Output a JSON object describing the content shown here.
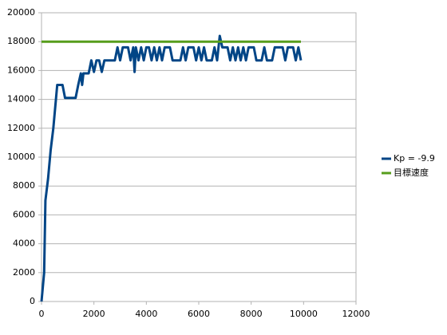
{
  "chart_data": {
    "type": "line",
    "series": [
      {
        "name": "Kp = -9.9",
        "color": "#004586",
        "x": [
          0,
          100,
          150,
          250,
          350,
          450,
          600,
          800,
          900,
          1300,
          1400,
          1500,
          1550,
          1600,
          1800,
          1900,
          2000,
          2100,
          2200,
          2300,
          2400,
          2800,
          2900,
          3000,
          3100,
          3300,
          3400,
          3500,
          3550,
          3600,
          3700,
          3800,
          3900,
          4000,
          4100,
          4200,
          4300,
          4400,
          4500,
          4600,
          4700,
          4900,
          5000,
          5300,
          5400,
          5500,
          5600,
          5800,
          5900,
          6000,
          6100,
          6200,
          6300,
          6500,
          6600,
          6700,
          6800,
          6900,
          7100,
          7200,
          7300,
          7400,
          7500,
          7600,
          7700,
          7800,
          7900,
          8100,
          8200,
          8400,
          8500,
          8600,
          8800,
          8900,
          9200,
          9300,
          9400,
          9600,
          9700,
          9800,
          9900
        ],
        "values": [
          0,
          2000,
          7000,
          8500,
          10500,
          12000,
          15000,
          15000,
          14100,
          14100,
          15000,
          15800,
          15000,
          15800,
          15800,
          16700,
          15900,
          16700,
          16700,
          15900,
          16700,
          16700,
          17600,
          16700,
          17600,
          17600,
          16700,
          17600,
          15900,
          17600,
          16700,
          17600,
          16700,
          17600,
          17600,
          16700,
          17600,
          16700,
          17600,
          16700,
          17600,
          17600,
          16700,
          16700,
          17600,
          16700,
          17600,
          17600,
          16700,
          17600,
          16700,
          17600,
          16700,
          16700,
          17600,
          16700,
          18400,
          17600,
          17600,
          16700,
          17600,
          16700,
          17600,
          16700,
          17600,
          16700,
          17600,
          17600,
          16700,
          16700,
          17600,
          16700,
          16700,
          17600,
          17600,
          16700,
          17600,
          17600,
          16700,
          17600,
          16700
        ]
      },
      {
        "name": "目標速度",
        "color": "#579d1c",
        "x": [
          0,
          9900
        ],
        "values": [
          18000,
          18000
        ]
      }
    ],
    "xlim": [
      0,
      12000
    ],
    "xticks": [
      0,
      2000,
      4000,
      6000,
      8000,
      10000,
      12000
    ],
    "ylim": [
      0,
      20000
    ],
    "yticks": [
      0,
      2000,
      4000,
      6000,
      8000,
      10000,
      12000,
      14000,
      16000,
      18000,
      20000
    ],
    "grid": true,
    "legend": "right"
  }
}
